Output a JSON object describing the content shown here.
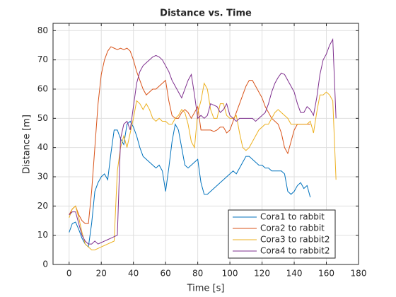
{
  "chart_data": {
    "type": "line",
    "title": "Distance vs. Time",
    "xlabel": "Time [s]",
    "ylabel": "Distance [m]",
    "xlim": [
      -10,
      180
    ],
    "ylim": [
      0,
      82.5
    ],
    "xticks": [
      0,
      20,
      40,
      60,
      80,
      100,
      120,
      140,
      160,
      180
    ],
    "yticks": [
      0,
      10,
      20,
      30,
      40,
      50,
      60,
      70,
      80
    ],
    "grid": true,
    "legend": "lower right",
    "x": [
      0,
      2,
      4,
      6,
      8,
      10,
      12,
      14,
      16,
      18,
      20,
      22,
      24,
      26,
      28,
      30,
      32,
      34,
      36,
      38,
      40,
      42,
      44,
      46,
      48,
      50,
      52,
      54,
      56,
      58,
      60,
      62,
      64,
      66,
      68,
      70,
      72,
      74,
      76,
      78,
      80,
      82,
      84,
      86,
      88,
      90,
      92,
      94,
      96,
      98,
      100,
      102,
      104,
      106,
      108,
      110,
      112,
      114,
      116,
      118,
      120,
      122,
      124,
      126,
      128,
      130,
      132,
      134,
      136,
      138,
      140,
      142,
      144,
      146,
      148,
      150,
      152,
      154,
      156,
      158,
      160,
      162,
      164,
      166,
      168
    ],
    "series": [
      {
        "name": "Cora1 to rabbit",
        "color": "#0072bd",
        "values": [
          11,
          14,
          14.5,
          12,
          9,
          7,
          6,
          14,
          25,
          28,
          30,
          31,
          29,
          38,
          46,
          46,
          43,
          41,
          48,
          49,
          47,
          44,
          40,
          37,
          36,
          35,
          34,
          33,
          34,
          32,
          25,
          33,
          42,
          48,
          46,
          40,
          34,
          33,
          34,
          35,
          36,
          28,
          24,
          24,
          25,
          26,
          27,
          28,
          29,
          30,
          31,
          32,
          31,
          33,
          35,
          37,
          37,
          36,
          35,
          34,
          34,
          33,
          33,
          32,
          32,
          32,
          32,
          31,
          25,
          24,
          25,
          27,
          28,
          26,
          27,
          23,
          null,
          null,
          null,
          null,
          null,
          null,
          null,
          null,
          null
        ]
      },
      {
        "name": "Cora2 to rabbit",
        "color": "#d95319",
        "values": [
          17,
          19,
          20,
          17,
          15,
          14,
          14,
          25,
          40,
          55,
          65,
          70,
          73,
          74.5,
          74,
          73.5,
          74,
          73.5,
          74,
          73,
          70,
          66,
          63,
          60,
          58,
          59,
          60,
          60,
          61,
          62,
          63,
          56,
          51,
          50,
          50,
          52,
          53,
          52,
          50,
          52,
          54,
          46,
          46,
          46,
          46,
          45.5,
          46,
          47,
          47,
          45,
          46,
          49,
          52,
          55,
          58,
          61,
          63,
          63,
          61,
          59,
          57,
          54,
          52,
          50,
          49,
          48,
          45,
          40,
          38,
          42,
          46,
          48,
          48,
          48,
          48,
          48,
          null,
          null,
          null,
          null,
          null,
          null,
          null,
          null,
          null
        ]
      },
      {
        "name": "Cora3 to rabbit2",
        "color": "#edb120",
        "values": [
          16,
          19,
          20,
          16,
          11,
          7,
          6,
          5,
          5,
          5.5,
          6,
          6.5,
          7,
          7.5,
          8,
          32,
          40,
          44,
          40,
          45,
          50,
          56,
          55,
          53,
          55,
          53,
          50,
          49,
          50,
          49,
          49,
          48,
          48,
          50,
          51,
          53,
          52,
          48,
          42,
          40,
          52,
          56,
          62,
          60,
          53,
          50,
          50,
          55,
          55,
          51,
          50,
          50,
          51,
          45,
          40,
          39,
          40,
          42,
          44,
          46,
          47,
          48,
          48,
          50,
          52,
          53,
          52,
          51,
          50,
          48,
          48,
          48,
          48,
          48,
          48,
          49,
          45,
          52,
          58,
          58,
          59,
          58,
          56,
          29,
          null
        ]
      },
      {
        "name": "Cora4 to rabbit2",
        "color": "#7e2f8e",
        "values": [
          17,
          18,
          18,
          14,
          10,
          8,
          7,
          7,
          8,
          7,
          7.5,
          8,
          8.5,
          9,
          9.5,
          10,
          43,
          48,
          49,
          46,
          54,
          62,
          66,
          68,
          69,
          70,
          71,
          71.5,
          71,
          70,
          68,
          66,
          63,
          61,
          59,
          57,
          60,
          63,
          65,
          58,
          50,
          51,
          50,
          51,
          55,
          54.5,
          54,
          52,
          53,
          55,
          51,
          50,
          49,
          50,
          50,
          50,
          50,
          50,
          49,
          50,
          51,
          52,
          55,
          59,
          62,
          64,
          65.5,
          65,
          63,
          61,
          59,
          55,
          52,
          52,
          54,
          53,
          51,
          57,
          65,
          70,
          72,
          75,
          77,
          50,
          null
        ]
      }
    ]
  }
}
